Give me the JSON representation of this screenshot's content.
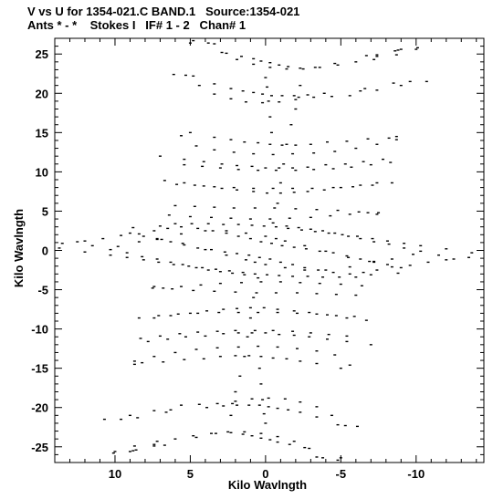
{
  "header": {
    "line1": "V vs U for 1354-021.C BAND.1   Source:1354-021",
    "line2": "Ants * - *    Stokes I   IF# 1 - 2   Chan# 1"
  },
  "chart_data": {
    "type": "scatter",
    "title": "V vs U for 1354-021.C BAND.1   Source:1354-021",
    "subtitle": "Ants * - *    Stokes I   IF# 1 - 2   Chan# 1",
    "xlabel": "Kilo Wavlngth",
    "ylabel": "Kilo Wavlngth",
    "xlim": [
      14,
      -14.5
    ],
    "ylim": [
      -27,
      27
    ],
    "x_reversed": true,
    "grid": false,
    "xticks": [
      10,
      5,
      0,
      -5,
      -10
    ],
    "xtick_labels": [
      "10",
      "5",
      "0",
      "-5",
      "-10"
    ],
    "yticks": [
      -25,
      -20,
      -15,
      -10,
      -5,
      0,
      5,
      10,
      15,
      20,
      25
    ],
    "ytick_labels": [
      "-25",
      "-20",
      "-15",
      "-10",
      "-5",
      "0",
      "5",
      "10",
      "15",
      "20",
      "25"
    ],
    "series": [
      {
        "marker": "dash",
        "color": "#000000",
        "points": [
          [
            5,
            26.4
          ],
          [
            3.4,
            26.3
          ],
          [
            2.6,
            25.1
          ],
          [
            1.6,
            24.7
          ],
          [
            0.8,
            24.4
          ],
          [
            0.3,
            24.1
          ],
          [
            -0.3,
            23.9
          ],
          [
            -0.9,
            23.6
          ],
          [
            -1.5,
            23.4
          ],
          [
            -2.3,
            23.2
          ],
          [
            -3.3,
            23.3
          ],
          [
            -4.6,
            23.8
          ],
          [
            -6.7,
            24.8
          ],
          [
            -7.4,
            24.9
          ],
          [
            -8.6,
            25.4
          ],
          [
            -9,
            25.6
          ],
          [
            -10.1,
            25.8
          ],
          [
            4.8,
            22.2
          ],
          [
            3.4,
            21.2
          ],
          [
            2.3,
            20.6
          ],
          [
            1.5,
            20.3
          ],
          [
            0.8,
            20.1
          ],
          [
            0.2,
            19.9
          ],
          [
            -0.4,
            19.7
          ],
          [
            -1.1,
            19.7
          ],
          [
            -1.9,
            19.7
          ],
          [
            -2.8,
            19.8
          ],
          [
            -3.9,
            20
          ],
          [
            -6.6,
            20.6
          ],
          [
            -8.5,
            21.3
          ],
          [
            -9.6,
            21.5
          ],
          [
            0,
            22
          ],
          [
            -0.1,
            20.8
          ],
          [
            -0.2,
            19
          ],
          [
            -0.3,
            17
          ],
          [
            -0.4,
            15
          ],
          [
            5,
            15
          ],
          [
            3.4,
            14.4
          ],
          [
            2.3,
            14.1
          ],
          [
            1.4,
            13.8
          ],
          [
            0.5,
            13.7
          ],
          [
            -0.3,
            13.5
          ],
          [
            -1.1,
            13.4
          ],
          [
            -2,
            13.4
          ],
          [
            -3,
            13.5
          ],
          [
            -4.1,
            13.8
          ],
          [
            -5.4,
            13.9
          ],
          [
            -6.8,
            14.2
          ],
          [
            -8.2,
            14.3
          ],
          [
            -8.7,
            14.5
          ],
          [
            7,
            12
          ],
          [
            5.4,
            11.6
          ],
          [
            4.1,
            11.3
          ],
          [
            2.9,
            11
          ],
          [
            1.9,
            10.8
          ],
          [
            0.9,
            10.7
          ],
          [
            0,
            10.5
          ],
          [
            -0.9,
            10.5
          ],
          [
            -1.8,
            10.5
          ],
          [
            -2.8,
            10.6
          ],
          [
            -4,
            10.9
          ],
          [
            -5.3,
            11
          ],
          [
            -6.5,
            11.3
          ],
          [
            -7.8,
            11.6
          ],
          [
            6.7,
            8.9
          ],
          [
            5.4,
            8.6
          ],
          [
            4.1,
            8.2
          ],
          [
            2.9,
            7.9
          ],
          [
            1.9,
            7.7
          ],
          [
            0.8,
            7.5
          ],
          [
            -0.1,
            7.3
          ],
          [
            -1,
            7.3
          ],
          [
            -1.9,
            7.4
          ],
          [
            -2.8,
            7.5
          ],
          [
            -3.9,
            7.7
          ],
          [
            -5,
            8
          ],
          [
            -6.3,
            8.3
          ],
          [
            -7.4,
            8.6
          ],
          [
            6.4,
            4.5
          ],
          [
            5,
            4.3
          ],
          [
            3.6,
            4.2
          ],
          [
            2.3,
            4.1
          ],
          [
            1,
            4
          ],
          [
            -0.3,
            4
          ],
          [
            -1.6,
            4.1
          ],
          [
            -3,
            4.2
          ],
          [
            -4.3,
            4.4
          ],
          [
            -5.6,
            4.6
          ],
          [
            -6.8,
            4.8
          ],
          [
            -7.4,
            4.6
          ],
          [
            13.5,
            0.9
          ],
          [
            12,
            1.2
          ],
          [
            10.8,
            1.5
          ],
          [
            9.6,
            1.9
          ],
          [
            8.4,
            2.1
          ],
          [
            7.4,
            2.5
          ],
          [
            6.5,
            2.8
          ],
          [
            5.6,
            3
          ],
          [
            4.5,
            2.8
          ],
          [
            3.5,
            2.5
          ],
          [
            2.6,
            2.2
          ],
          [
            1.8,
            1.8
          ],
          [
            1,
            1.5
          ],
          [
            0.3,
            1.1
          ],
          [
            -0.4,
            0.9
          ],
          [
            -1.1,
            0.6
          ],
          [
            -1.9,
            0.4
          ],
          [
            -2.7,
            0.2
          ],
          [
            -3.6,
            -0.1
          ],
          [
            -4.5,
            -0.3
          ],
          [
            -5.4,
            -0.7
          ],
          [
            -6.3,
            -1.1
          ],
          [
            -7.2,
            -1.4
          ],
          [
            -8.1,
            -1.8
          ],
          [
            -9,
            -2.2
          ],
          [
            -12.5,
            -1.1
          ],
          [
            -11.5,
            -0.6
          ],
          [
            -10.3,
            -0.1
          ],
          [
            -9.2,
            0.3
          ],
          [
            -8.2,
            0.8
          ],
          [
            -7.2,
            1.1
          ],
          [
            -6.3,
            1.5
          ],
          [
            -5.5,
            1.8
          ],
          [
            -4.6,
            2.2
          ],
          [
            -3.8,
            2.5
          ],
          [
            -3,
            2.7
          ],
          [
            -2.2,
            2.9
          ],
          [
            -1.4,
            3.1
          ],
          [
            10.3,
            -0.6
          ],
          [
            9.2,
            -0.9
          ],
          [
            8.1,
            -1.2
          ],
          [
            7.1,
            -1.5
          ],
          [
            6.1,
            -1.8
          ],
          [
            5.1,
            -2
          ],
          [
            4.2,
            -2.2
          ],
          [
            3.3,
            -2.4
          ],
          [
            2.4,
            -2.6
          ],
          [
            1.5,
            -2.8
          ],
          [
            0.7,
            -3
          ],
          [
            -0.1,
            -3.1
          ],
          [
            -0.9,
            -3.2
          ],
          [
            -1.8,
            -3.3
          ],
          [
            -2.8,
            -3.3
          ],
          [
            -3.8,
            -3.4
          ],
          [
            -4.9,
            -3.4
          ],
          [
            -6,
            -3.4
          ],
          [
            -7,
            -3.1
          ],
          [
            -8.8,
            -2.9
          ],
          [
            -13.7,
            -0.3
          ],
          [
            12,
            -0.2
          ],
          [
            9.8,
            0.5
          ],
          [
            8.4,
            1.1
          ],
          [
            6.9,
            1.4
          ],
          [
            5.5,
            0.9
          ],
          [
            4,
            0.1
          ],
          [
            2.6,
            -0.6
          ],
          [
            1.3,
            -1.2
          ],
          [
            0,
            -1.8
          ],
          [
            -1.3,
            -2.2
          ],
          [
            -2.6,
            -2.5
          ],
          [
            -4,
            -2.5
          ],
          [
            -5.6,
            -2.1
          ],
          [
            -7.2,
            -1.5
          ],
          [
            7.5,
            -4.8
          ],
          [
            6.2,
            -4.9
          ],
          [
            4.8,
            -5.1
          ],
          [
            3.4,
            -5.2
          ],
          [
            2,
            -5.3
          ],
          [
            0.6,
            -5.4
          ],
          [
            -0.7,
            -5.4
          ],
          [
            -2.1,
            -5.4
          ],
          [
            -3.4,
            -5.5
          ],
          [
            -4.7,
            -5.6
          ],
          [
            -6,
            -5.7
          ],
          [
            8.4,
            -8.6
          ],
          [
            7.1,
            -8.3
          ],
          [
            5.8,
            -8.1
          ],
          [
            4.5,
            -8
          ],
          [
            3.1,
            -7.9
          ],
          [
            1.8,
            -7.9
          ],
          [
            0.5,
            -7.9
          ],
          [
            -0.8,
            -7.9
          ],
          [
            -2.1,
            -8
          ],
          [
            -3.4,
            -8.1
          ],
          [
            -4.7,
            -8.3
          ],
          [
            -5.9,
            -8.4
          ],
          [
            8.3,
            -11.2
          ],
          [
            7,
            -10.9
          ],
          [
            5.7,
            -10.6
          ],
          [
            4.5,
            -10.4
          ],
          [
            3.2,
            -10.3
          ],
          [
            2,
            -10.2
          ],
          [
            0.7,
            -10.2
          ],
          [
            -0.5,
            -10.2
          ],
          [
            -1.8,
            -10.3
          ],
          [
            -3,
            -10.5
          ],
          [
            -4.2,
            -10.7
          ],
          [
            -5.4,
            -10.9
          ],
          [
            8.7,
            -14.1
          ],
          [
            7.4,
            -13.5
          ],
          [
            6,
            -13
          ],
          [
            4.6,
            -12.6
          ],
          [
            3.2,
            -12.4
          ],
          [
            1.8,
            -12.3
          ],
          [
            0.5,
            -12.2
          ],
          [
            -0.8,
            -12.3
          ],
          [
            -2.1,
            -12.5
          ],
          [
            -3.4,
            -12.8
          ],
          [
            -4.6,
            -13.3
          ],
          [
            -5.6,
            -14.6
          ],
          [
            5.6,
            -19.7
          ],
          [
            4.4,
            -19.6
          ],
          [
            3.2,
            -19.5
          ],
          [
            2,
            -19.2
          ],
          [
            0.9,
            -18.9
          ],
          [
            -0.2,
            -18.8
          ],
          [
            -1.3,
            -18.9
          ],
          [
            -2.3,
            -19.3
          ],
          [
            -3.4,
            -19.9
          ],
          [
            -4.4,
            -21
          ],
          [
            -5.3,
            -22.3
          ],
          [
            10.7,
            -21.5
          ],
          [
            9,
            -21
          ],
          [
            7.4,
            -20.4
          ],
          [
            6.3,
            -20.3
          ],
          [
            -6.1,
            -22.4
          ],
          [
            8.8,
            -25.5
          ],
          [
            7.4,
            -24.7
          ],
          [
            6,
            -24
          ],
          [
            4.8,
            -23.6
          ],
          [
            3.6,
            -23.3
          ],
          [
            2.5,
            -23.1
          ],
          [
            1.4,
            -23.1
          ],
          [
            0.3,
            -23.3
          ],
          [
            -0.8,
            -23.7
          ],
          [
            -1.9,
            -24.3
          ],
          [
            -2.9,
            -25.2
          ],
          [
            -3.8,
            -26.4
          ],
          [
            -4.8,
            -26.7
          ],
          [
            10,
            -25.6
          ],
          [
            8.7,
            -24.9
          ],
          [
            7.2,
            -24.3
          ],
          [
            0.7,
            -1.5
          ],
          [
            0.5,
            -3.5
          ],
          [
            0.8,
            -6
          ],
          [
            1,
            -8.6
          ],
          [
            1.2,
            -11
          ],
          [
            1.4,
            -13.5
          ],
          [
            1.7,
            -16
          ],
          [
            2,
            -18
          ],
          [
            2.2,
            -19.5
          ],
          [
            2.3,
            -21
          ]
        ]
      }
    ]
  }
}
